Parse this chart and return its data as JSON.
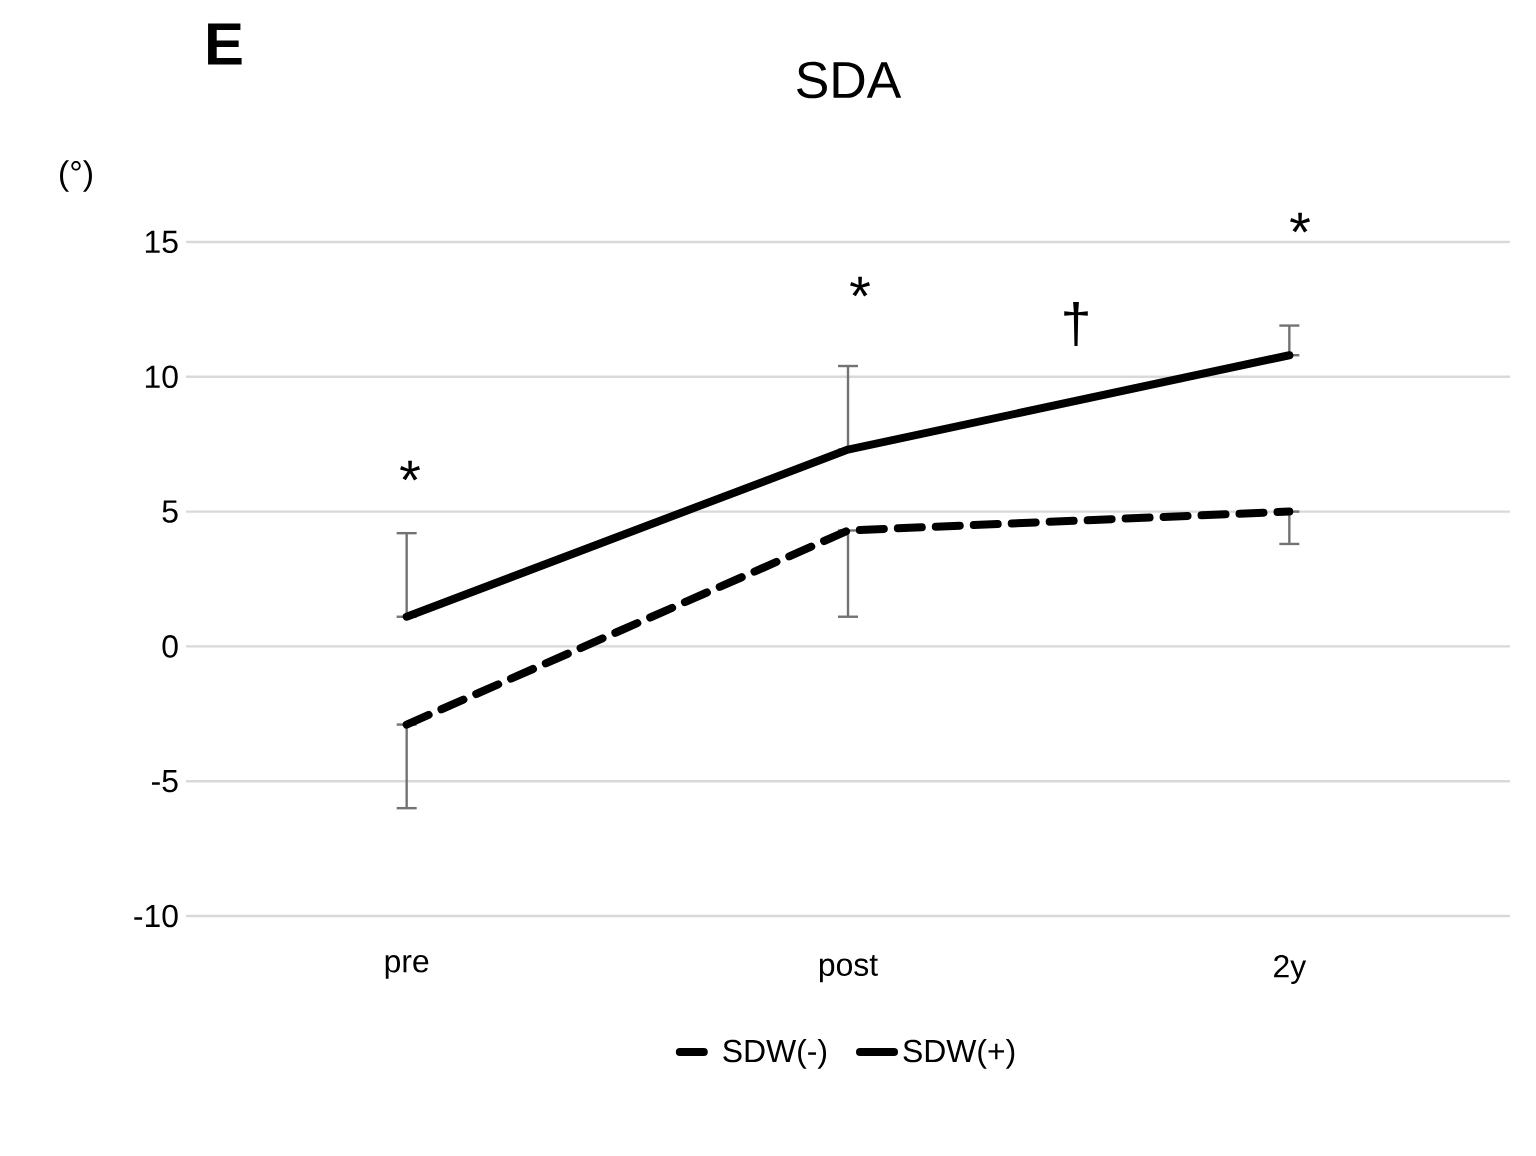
{
  "chart_data": {
    "type": "line",
    "title": "SDA",
    "ylabel": "(°)",
    "categories": [
      "pre",
      "post",
      "2y"
    ],
    "series": [
      {
        "name": "SDW(-)",
        "color": "#000000",
        "line_style": "dashed",
        "values": [
          -2.9,
          4.3,
          5.0
        ],
        "errors": [
          [
            -6.0,
            -2.9
          ],
          [
            1.1,
            4.3
          ],
          [
            3.8,
            5.0
          ]
        ]
      },
      {
        "name": "SDW(+)",
        "color": "#000000",
        "line_style": "solid",
        "values": [
          1.1,
          7.3,
          10.8
        ],
        "errors": [
          [
            1.1,
            4.2
          ],
          [
            7.3,
            10.4
          ],
          [
            10.8,
            11.9
          ]
        ]
      }
    ],
    "ylim": [
      -10,
      15
    ],
    "yticks": [
      -10,
      -5,
      0,
      5,
      10,
      15
    ],
    "grid": "y",
    "legend": "bottom",
    "marker": "none",
    "annotations": [
      "E",
      "*",
      "*",
      "†",
      "*"
    ]
  }
}
